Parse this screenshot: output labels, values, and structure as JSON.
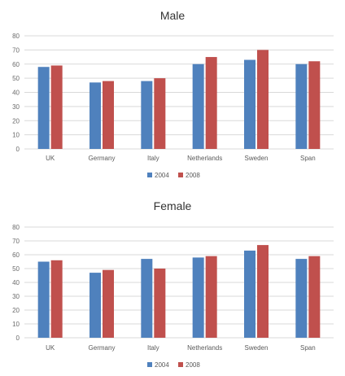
{
  "chart_data": [
    {
      "type": "bar",
      "title": "Male",
      "categories": [
        "UK",
        "Germany",
        "Italy",
        "Netherlands",
        "Sweden",
        "Span"
      ],
      "series": [
        {
          "name": "2004",
          "color": "#4f81bd",
          "values": [
            58,
            47,
            48,
            60,
            63,
            60
          ]
        },
        {
          "name": "2008",
          "color": "#c0504d",
          "values": [
            59,
            48,
            50,
            65,
            70,
            62
          ]
        }
      ],
      "ylim": [
        0,
        80
      ],
      "yticks": [
        0,
        10,
        20,
        30,
        40,
        50,
        60,
        70,
        80
      ],
      "grid": true,
      "legend": "bottom"
    },
    {
      "type": "bar",
      "title": "Female",
      "categories": [
        "UK",
        "Germany",
        "Italy",
        "Netherlands",
        "Sweden",
        "Span"
      ],
      "series": [
        {
          "name": "2004",
          "color": "#4f81bd",
          "values": [
            55,
            47,
            57,
            58,
            63,
            57
          ]
        },
        {
          "name": "2008",
          "color": "#c0504d",
          "values": [
            56,
            49,
            50,
            59,
            67,
            59
          ]
        }
      ],
      "ylim": [
        0,
        80
      ],
      "yticks": [
        0,
        10,
        20,
        30,
        40,
        50,
        60,
        70,
        80
      ],
      "grid": true,
      "legend": "bottom"
    }
  ]
}
